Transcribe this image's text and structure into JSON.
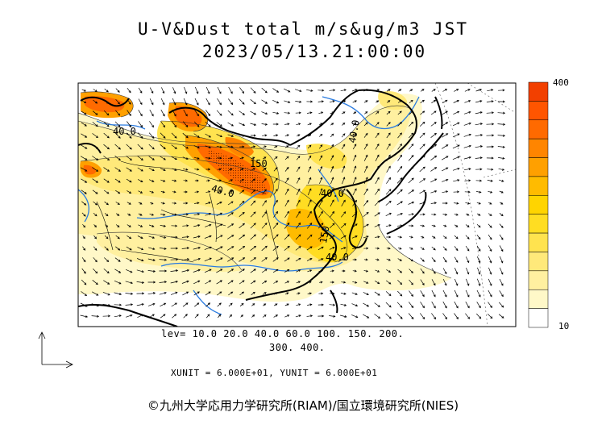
{
  "header": {
    "title": "U-V&Dust total m/s&ug/m3 JST",
    "datetime": "2023/05/13.21:00:00"
  },
  "legend": {
    "levels_line1": "lev= 10.0 20.0 40.0 60.0 100. 150. 200.",
    "levels_line2": "300. 400.",
    "scale_max_label": "400",
    "scale_min_label": "10",
    "colors": [
      "#ffffff",
      "#fff8c8",
      "#fff0a0",
      "#ffe97a",
      "#ffe34f",
      "#ffdd22",
      "#ffd400",
      "#ffbb00",
      "#ffa000",
      "#ff8500",
      "#ff6a00",
      "#ff5500",
      "#f24000"
    ]
  },
  "contour_labels": [
    "40.0",
    "40.0",
    "150",
    "40.0",
    "40.0",
    "150",
    "40.0"
  ],
  "units_note": "XUNIT = 6.000E+01, YUNIT = 6.000E+01",
  "copyright": "©九州大学応用力学研究所(RIAM)/国立環境研究所(NIES)"
}
